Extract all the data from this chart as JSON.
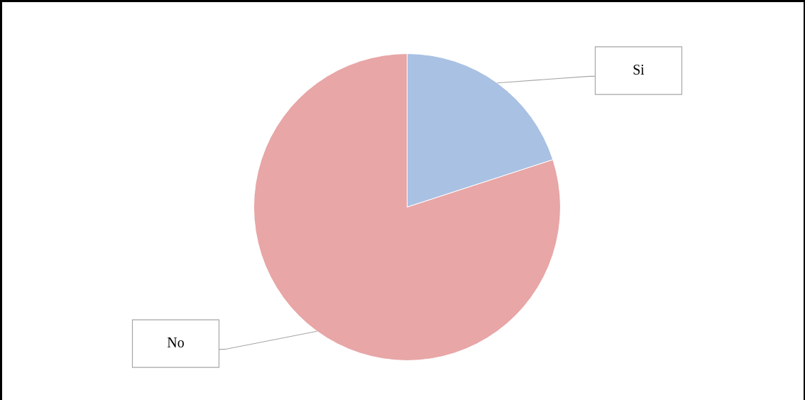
{
  "chart_data": {
    "type": "pie",
    "categories": [
      "Si",
      "No"
    ],
    "values": [
      20,
      80
    ],
    "colors": [
      "#a9c1e3",
      "#e8a6a7"
    ],
    "legend": false
  }
}
